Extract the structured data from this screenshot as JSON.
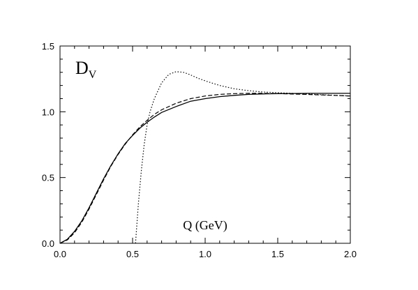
{
  "chart_data": {
    "type": "line",
    "title": "",
    "xlabel": "Q (GeV)",
    "ylabel": "",
    "panel_label": "D",
    "panel_label_sub": "V",
    "xlim": [
      0,
      2.0
    ],
    "ylim": [
      0,
      1.5
    ],
    "x_ticks": [
      "0.0",
      "0.5",
      "1.0",
      "1.5",
      "2.0"
    ],
    "y_ticks": [
      "0.0",
      "0.5",
      "1.0",
      "1.5"
    ],
    "grid": false,
    "legend": "none",
    "series": [
      {
        "style": "solid",
        "x": [
          0,
          0.05,
          0.1,
          0.15,
          0.2,
          0.25,
          0.3,
          0.35,
          0.4,
          0.45,
          0.5,
          0.55,
          0.6,
          0.65,
          0.7,
          0.8,
          0.9,
          1.0,
          1.1,
          1.2,
          1.3,
          1.4,
          1.5,
          1.6,
          1.7,
          1.8,
          1.9,
          2.0
        ],
        "y": [
          0,
          0.03,
          0.09,
          0.17,
          0.27,
          0.38,
          0.49,
          0.59,
          0.68,
          0.76,
          0.82,
          0.875,
          0.92,
          0.96,
          0.995,
          1.04,
          1.08,
          1.1,
          1.115,
          1.125,
          1.132,
          1.136,
          1.138,
          1.139,
          1.14,
          1.14,
          1.14,
          1.14
        ]
      },
      {
        "style": "dashed",
        "x": [
          0,
          0.05,
          0.1,
          0.15,
          0.2,
          0.25,
          0.3,
          0.35,
          0.4,
          0.45,
          0.5,
          0.55,
          0.6,
          0.65,
          0.7,
          0.8,
          0.9,
          1.0,
          1.1,
          1.2,
          1.3,
          1.4,
          1.5,
          1.6,
          1.7,
          1.8,
          1.9,
          2.0
        ],
        "y": [
          0,
          0.025,
          0.08,
          0.16,
          0.26,
          0.37,
          0.48,
          0.585,
          0.675,
          0.755,
          0.825,
          0.885,
          0.935,
          0.98,
          1.015,
          1.065,
          1.1,
          1.12,
          1.132,
          1.138,
          1.14,
          1.14,
          1.138,
          1.135,
          1.132,
          1.128,
          1.124,
          1.12
        ]
      },
      {
        "style": "dotted",
        "x": [
          0.52,
          0.54,
          0.56,
          0.58,
          0.6,
          0.62,
          0.65,
          0.7,
          0.75,
          0.8,
          0.85,
          0.9,
          0.95,
          1.0,
          1.1,
          1.2,
          1.3,
          1.4,
          1.5,
          1.6,
          1.7,
          1.8,
          1.9,
          2.0
        ],
        "y": [
          0,
          0.3,
          0.55,
          0.75,
          0.9,
          1.0,
          1.1,
          1.22,
          1.285,
          1.305,
          1.3,
          1.28,
          1.255,
          1.235,
          1.2,
          1.175,
          1.16,
          1.15,
          1.145,
          1.14,
          1.135,
          1.13,
          1.125,
          1.12
        ]
      }
    ]
  }
}
